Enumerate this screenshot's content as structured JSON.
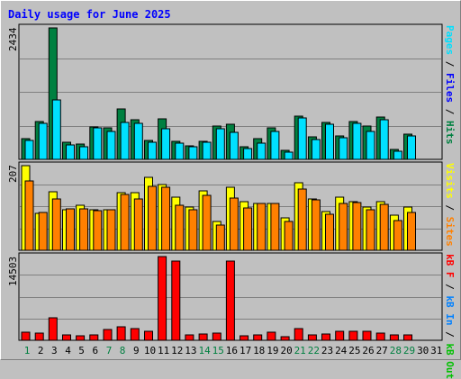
{
  "title": "Daily usage for June 2025",
  "colors": {
    "pages": "#00e0ff",
    "hits": "#008040",
    "files": "#0000ff",
    "visits": "#ffff00",
    "sites": "#ff8000",
    "kb_f": "#ff0000",
    "kb_in": "#0080ff",
    "kb_out": "#00c000",
    "weekend_day": "#008040",
    "weekday": "#000000"
  },
  "right_labels": {
    "top": [
      {
        "text": "Pages",
        "color": "#00e0ff"
      },
      {
        "text": " / ",
        "color": "#000000"
      },
      {
        "text": "Files",
        "color": "#0000ff"
      },
      {
        "text": " / ",
        "color": "#000000"
      },
      {
        "text": "Hits",
        "color": "#008040"
      }
    ],
    "middle": [
      {
        "text": "Visits",
        "color": "#ffff00"
      },
      {
        "text": " / ",
        "color": "#000000"
      },
      {
        "text": "Sites",
        "color": "#ff8000"
      }
    ],
    "bottom": [
      {
        "text": "kB F",
        "color": "#ff0000"
      },
      {
        "text": " / ",
        "color": "#000000"
      },
      {
        "text": "kB In",
        "color": "#0080ff"
      },
      {
        "text": " / ",
        "color": "#000000"
      },
      {
        "text": "kB Out",
        "color": "#00c000"
      }
    ]
  },
  "chart_data": {
    "type": "bar",
    "x": [
      "1",
      "2",
      "3",
      "4",
      "5",
      "6",
      "7",
      "8",
      "9",
      "10",
      "11",
      "12",
      "13",
      "14",
      "15",
      "16",
      "17",
      "18",
      "19",
      "20",
      "21",
      "22",
      "23",
      "24",
      "25",
      "26",
      "27",
      "28",
      "29",
      "30",
      "31"
    ],
    "weekend_days": [
      "1",
      "7",
      "8",
      "14",
      "15",
      "21",
      "22",
      "28",
      "29"
    ],
    "panels": [
      {
        "name": "hits",
        "ymax_label": "2434",
        "ylim": [
          0,
          2434
        ],
        "series": [
          {
            "name": "Hits",
            "color": "#008040",
            "values": [
              380,
              700,
              2434,
              320,
              280,
              600,
              580,
              940,
              740,
              350,
              750,
              330,
              250,
              330,
              620,
              650,
              230,
              380,
              590,
              170,
              800,
              420,
              680,
              430,
              700,
              620,
              790,
              180,
              470,
              0,
              0
            ]
          },
          {
            "name": "Pages",
            "color": "#00e0ff",
            "values": [
              350,
              670,
              1100,
              270,
              240,
              590,
              520,
              690,
              660,
              310,
              560,
              300,
              230,
              310,
              560,
              500,
              200,
              300,
              510,
              140,
              760,
              360,
              650,
              400,
              660,
              520,
              730,
              150,
              440,
              0,
              0
            ]
          }
        ]
      },
      {
        "name": "visits",
        "ymax_label": "207",
        "ylim": [
          0,
          207
        ],
        "series": [
          {
            "name": "Visits",
            "color": "#ffff00",
            "values": [
              207,
              90,
              143,
              100,
              110,
              100,
              100,
              142,
              142,
              178,
              160,
              130,
              105,
              146,
              70,
              155,
              120,
              115,
              115,
              80,
              165,
              125,
              95,
              130,
              120,
              105,
              120,
              85,
              105,
              0,
              0
            ]
          },
          {
            "name": "Sites",
            "color": "#ff8000",
            "values": [
              170,
              93,
              126,
              102,
              102,
              96,
              98,
              137,
              126,
              157,
              155,
              110,
              100,
              134,
              62,
              127,
              104,
              115,
              115,
              70,
              150,
              123,
              88,
              114,
              116,
              100,
              113,
              73,
              92,
              0,
              0
            ]
          }
        ]
      },
      {
        "name": "kbytes",
        "ymax_label": "14503",
        "ylim": [
          0,
          14503
        ],
        "series": [
          {
            "name": "kB F",
            "color": "#ff0000",
            "values": [
              1400,
              1200,
              3900,
              900,
              800,
              1000,
              1800,
              2400,
              2000,
              1500,
              14503,
              13800,
              1000,
              1100,
              1200,
              13800,
              800,
              1000,
              1400,
              700,
              2000,
              1000,
              1100,
              1500,
              1500,
              1500,
              1300,
              900,
              1000,
              0,
              0
            ]
          }
        ]
      }
    ]
  }
}
